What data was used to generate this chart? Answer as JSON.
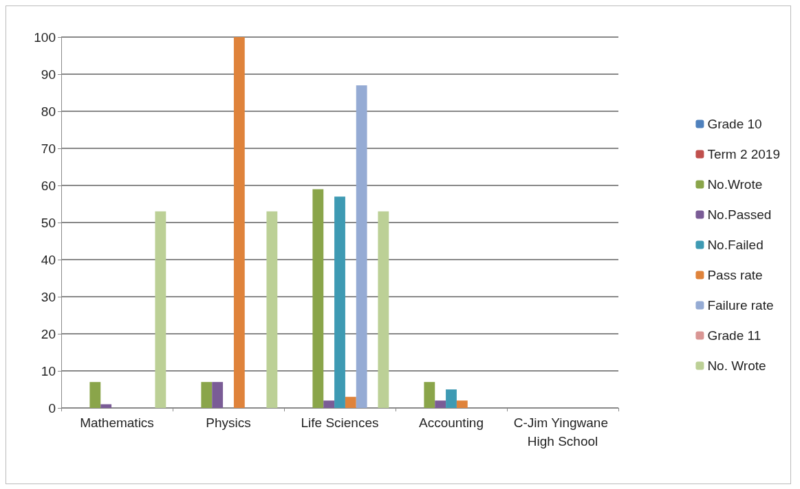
{
  "chart_data": {
    "type": "bar",
    "categories": [
      "Mathematics",
      "Physics",
      "Life Sciences",
      "Accounting",
      "C-Jim Yingwane High School"
    ],
    "series": [
      {
        "name": "Grade 10",
        "color": "#4f81bd",
        "values": [
          null,
          null,
          null,
          null,
          null
        ]
      },
      {
        "name": "Term 2 2019",
        "color": "#c0504d",
        "values": [
          null,
          null,
          null,
          null,
          null
        ]
      },
      {
        "name": "No.Wrote",
        "color": "#8aa54a",
        "values": [
          7,
          7,
          59,
          7,
          null
        ]
      },
      {
        "name": "No.Passed",
        "color": "#7a5c96",
        "values": [
          1,
          7,
          2,
          2,
          null
        ]
      },
      {
        "name": "No.Failed",
        "color": "#3e9ab3",
        "values": [
          0,
          0,
          57,
          5,
          null
        ]
      },
      {
        "name": "Pass rate",
        "color": "#df833b",
        "values": [
          0,
          100,
          3,
          2,
          null
        ]
      },
      {
        "name": "Failure rate",
        "color": "#95abd4",
        "values": [
          null,
          0,
          87,
          null,
          null
        ]
      },
      {
        "name": "Grade 11",
        "color": "#d99694",
        "values": [
          null,
          null,
          null,
          null,
          null
        ]
      },
      {
        "name": "No. Wrote",
        "color": "#bcd096",
        "values": [
          53,
          53,
          53,
          null,
          null
        ]
      }
    ],
    "ylim": [
      0,
      100
    ],
    "yticks": [
      0,
      10,
      20,
      30,
      40,
      50,
      60,
      70,
      80,
      90,
      100
    ],
    "grid": "y",
    "legend": "right"
  }
}
